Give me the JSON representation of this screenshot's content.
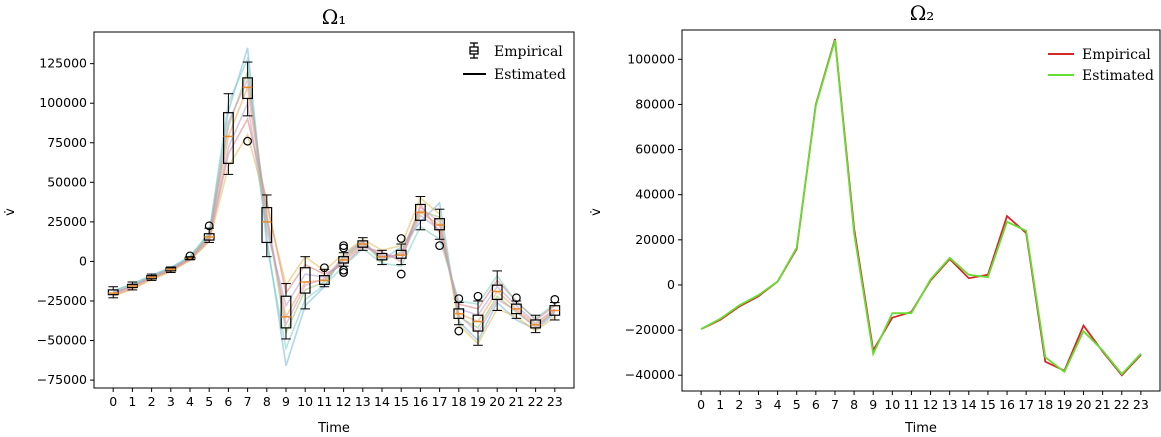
{
  "chart_data": [
    {
      "type": "box",
      "title": "Ω₁",
      "xlabel": "Time",
      "ylabel": "v̇",
      "ylim": [
        -80000,
        145000
      ],
      "yticks": [
        -75000,
        -50000,
        -25000,
        0,
        25000,
        50000,
        75000,
        100000,
        125000
      ],
      "ytick_labels": [
        "−75000",
        "−50000",
        "−25000",
        "0",
        "25000",
        "50000",
        "75000",
        "100000",
        "125000"
      ],
      "categories": [
        "0",
        "1",
        "2",
        "3",
        "4",
        "5",
        "6",
        "7",
        "8",
        "9",
        "10",
        "11",
        "12",
        "13",
        "14",
        "15",
        "16",
        "17",
        "18",
        "19",
        "20",
        "21",
        "22",
        "23"
      ],
      "legend": {
        "position": "top-right",
        "entries": [
          "Empirical",
          "Estimated"
        ]
      },
      "boxes": [
        {
          "q1": -21000,
          "median": -20000,
          "q3": -18000,
          "whislo": -23000,
          "whishi": -16000,
          "fliers": []
        },
        {
          "q1": -16500,
          "median": -15500,
          "q3": -14500,
          "whislo": -18000,
          "whishi": -13000,
          "fliers": []
        },
        {
          "q1": -11000,
          "median": -10000,
          "q3": -9000,
          "whislo": -12000,
          "whishi": -8000,
          "fliers": []
        },
        {
          "q1": -6000,
          "median": -5000,
          "q3": -4000,
          "whislo": -7000,
          "whishi": -3500,
          "fliers": []
        },
        {
          "q1": 1500,
          "median": 2000,
          "q3": 2500,
          "whislo": 1000,
          "whishi": 3000,
          "fliers": [
            3500
          ]
        },
        {
          "q1": 13500,
          "median": 15500,
          "q3": 17500,
          "whislo": 12000,
          "whishi": 21000,
          "fliers": [
            22500
          ]
        },
        {
          "q1": 62000,
          "median": 79000,
          "q3": 94000,
          "whislo": 55000,
          "whishi": 106000,
          "fliers": []
        },
        {
          "q1": 103000,
          "median": 110000,
          "q3": 116000,
          "whislo": 92000,
          "whishi": 126000,
          "fliers": [
            76000
          ]
        },
        {
          "q1": 12000,
          "median": 25000,
          "q3": 34000,
          "whislo": 3000,
          "whishi": 42000,
          "fliers": []
        },
        {
          "q1": -42000,
          "median": -35000,
          "q3": -22000,
          "whislo": -49000,
          "whishi": -14000,
          "fliers": []
        },
        {
          "q1": -20000,
          "median": -13000,
          "q3": -4000,
          "whislo": -30000,
          "whishi": 3000,
          "fliers": []
        },
        {
          "q1": -14500,
          "median": -12000,
          "q3": -9000,
          "whislo": -16000,
          "whishi": -5000,
          "fliers": [
            -4000
          ]
        },
        {
          "q1": -1000,
          "median": 1000,
          "q3": 3000,
          "whislo": -3000,
          "whishi": 5500,
          "fliers": [
            8500,
            10000,
            -5500,
            -7000
          ]
        },
        {
          "q1": 9000,
          "median": 11000,
          "q3": 13000,
          "whislo": 7000,
          "whishi": 15000,
          "fliers": []
        },
        {
          "q1": 1000,
          "median": 3000,
          "q3": 5000,
          "whislo": -2000,
          "whishi": 7000,
          "fliers": []
        },
        {
          "q1": 2000,
          "median": 4000,
          "q3": 7000,
          "whislo": -2000,
          "whishi": 11000,
          "fliers": [
            14500,
            -8000
          ]
        },
        {
          "q1": 26000,
          "median": 31000,
          "q3": 36000,
          "whislo": 20000,
          "whishi": 41000,
          "fliers": []
        },
        {
          "q1": 20000,
          "median": 23000,
          "q3": 27000,
          "whislo": 14000,
          "whishi": 33000,
          "fliers": [
            10000
          ]
        },
        {
          "q1": -36000,
          "median": -33000,
          "q3": -30000,
          "whislo": -40000,
          "whishi": -26000,
          "fliers": [
            -23500,
            -44000
          ]
        },
        {
          "q1": -44000,
          "median": -38000,
          "q3": -34000,
          "whislo": -53000,
          "whishi": -25000,
          "fliers": [
            -22000
          ]
        },
        {
          "q1": -24000,
          "median": -19000,
          "q3": -15000,
          "whislo": -31000,
          "whishi": -6000,
          "fliers": []
        },
        {
          "q1": -33000,
          "median": -30000,
          "q3": -27000,
          "whislo": -36000,
          "whishi": -25000,
          "fliers": [
            -23000
          ]
        },
        {
          "q1": -42000,
          "median": -40000,
          "q3": -37000,
          "whislo": -45000,
          "whishi": -34000,
          "fliers": []
        },
        {
          "q1": -34000,
          "median": -31000,
          "q3": -28000,
          "whislo": -37000,
          "whishi": -26000,
          "fliers": [
            -24000
          ]
        }
      ],
      "estimated_paths": [
        [
          -20000,
          -15500,
          -10000,
          -5000,
          2000,
          15500,
          79000,
          110000,
          25000,
          -35000,
          -13000,
          -12000,
          1000,
          11000,
          3000,
          4000,
          31000,
          23000,
          -33000,
          -38000,
          -19000,
          -30000,
          -40000,
          -31000
        ],
        [
          -19000,
          -14000,
          -9000,
          -4000,
          3000,
          17000,
          95000,
          135000,
          15000,
          -66000,
          -28000,
          -16000,
          4000,
          13000,
          1000,
          9000,
          25000,
          37000,
          -38000,
          -50000,
          -26000,
          -37000,
          -43000,
          -33000
        ],
        [
          -21500,
          -17000,
          -11000,
          -6000,
          1000,
          13000,
          68000,
          90000,
          38000,
          -20000,
          -2000,
          -8000,
          -2000,
          9000,
          6000,
          0,
          36000,
          18000,
          -27000,
          -30000,
          -12000,
          -25000,
          -37000,
          -28000
        ],
        [
          -20500,
          -15000,
          -10500,
          -5500,
          2500,
          16500,
          85000,
          120000,
          28000,
          -45000,
          -18000,
          -13000,
          2000,
          12000,
          0,
          6000,
          32000,
          28000,
          -35000,
          -42000,
          -22000,
          -32000,
          -41000,
          -32000
        ],
        [
          -19500,
          -16000,
          -9500,
          -4500,
          1500,
          14500,
          72000,
          100000,
          20000,
          -28000,
          -8000,
          -10000,
          0,
          10000,
          4000,
          2000,
          29000,
          20000,
          -30000,
          -34000,
          -16000,
          -28000,
          -39000,
          -30000
        ],
        [
          -22000,
          -17500,
          -11500,
          -6500,
          800,
          12500,
          60000,
          80000,
          35000,
          -15000,
          3000,
          -6000,
          5000,
          14000,
          7000,
          10000,
          40000,
          30000,
          -40000,
          -52000,
          -30000,
          -35000,
          -44000,
          -35000
        ],
        [
          -18500,
          -14500,
          -8800,
          -3800,
          3200,
          18500,
          100000,
          128000,
          10000,
          -55000,
          -24000,
          -15000,
          -3000,
          8000,
          -1000,
          -3000,
          22000,
          14000,
          -25000,
          -27000,
          -9000,
          -26000,
          -36000,
          -27000
        ],
        [
          -20800,
          -15800,
          -10200,
          -5200,
          1800,
          15000,
          88000,
          115000,
          30000,
          -40000,
          -15000,
          -11000,
          3000,
          12500,
          2000,
          5000,
          34000,
          25000,
          -34000,
          -45000,
          -24000,
          -31000,
          -42000,
          -31500
        ]
      ]
    },
    {
      "type": "line",
      "title": "Ω₂",
      "xlabel": "Time",
      "ylabel": "v̇",
      "ylim": [
        -47000,
        113000
      ],
      "yticks": [
        -40000,
        -20000,
        0,
        20000,
        40000,
        60000,
        80000,
        100000
      ],
      "ytick_labels": [
        "−40000",
        "−20000",
        "0",
        "20000",
        "40000",
        "60000",
        "80000",
        "100000"
      ],
      "x": [
        "0",
        "1",
        "2",
        "3",
        "4",
        "5",
        "6",
        "7",
        "8",
        "9",
        "10",
        "11",
        "12",
        "13",
        "14",
        "15",
        "16",
        "17",
        "18",
        "19",
        "20",
        "21",
        "22",
        "23"
      ],
      "legend": {
        "position": "top-right"
      },
      "series": [
        {
          "name": "Empirical",
          "color": "#d62728",
          "values": [
            -19500,
            -15500,
            -9500,
            -5000,
            1500,
            16000,
            80000,
            109000,
            25000,
            -29000,
            -14500,
            -12000,
            2000,
            11500,
            3000,
            4500,
            30500,
            23000,
            -34000,
            -38000,
            -18000,
            -29500,
            -40000,
            -31000
          ]
        },
        {
          "name": "Estimated",
          "color": "#66dd33",
          "values": [
            -19500,
            -15000,
            -9000,
            -4500,
            1500,
            16500,
            79500,
            108500,
            23000,
            -30500,
            -12500,
            -12500,
            2500,
            12000,
            4500,
            3500,
            28000,
            24000,
            -32000,
            -38500,
            -20500,
            -29000,
            -39500,
            -30500
          ]
        }
      ]
    }
  ]
}
